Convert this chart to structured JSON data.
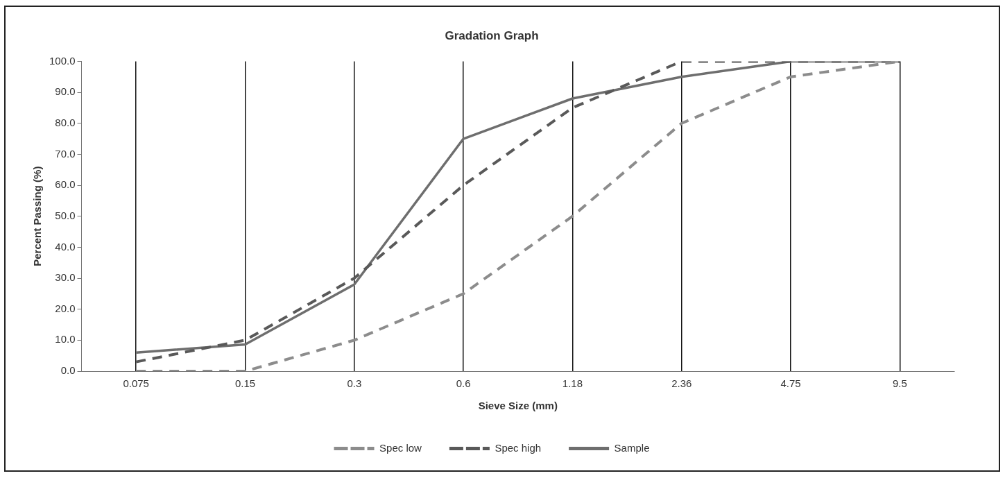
{
  "chart_data": {
    "type": "line",
    "title": "Gradation Graph",
    "xlabel": "Sieve Size (mm)",
    "ylabel": "Percent Passing (%)",
    "categories": [
      "0.075",
      "0.15",
      "0.3",
      "0.6",
      "1.18",
      "2.36",
      "4.75",
      "9.5"
    ],
    "series": [
      {
        "name": "Spec low",
        "color": "#8c8c8c",
        "line_style": "dashed",
        "values": [
          0,
          0,
          10,
          25,
          50,
          80,
          95,
          100
        ]
      },
      {
        "name": "Spec high",
        "color": "#595959",
        "line_style": "dashed",
        "values": [
          3,
          10,
          30,
          60,
          85,
          100,
          100,
          100
        ]
      },
      {
        "name": "Sample",
        "color": "#6e6e6e",
        "line_style": "solid",
        "values": [
          6,
          8.6,
          28,
          75,
          88,
          95,
          100,
          100
        ]
      }
    ],
    "ylim": [
      0,
      100
    ],
    "yticks": [
      {
        "value": 0,
        "label": "0.0"
      },
      {
        "value": 10,
        "label": "10.0"
      },
      {
        "value": 20,
        "label": "20.0"
      },
      {
        "value": 30,
        "label": "30.0"
      },
      {
        "value": 40,
        "label": "40.0"
      },
      {
        "value": 50,
        "label": "50.0"
      },
      {
        "value": 60,
        "label": "60.0"
      },
      {
        "value": 70,
        "label": "70.0"
      },
      {
        "value": 80,
        "label": "80.0"
      },
      {
        "value": 90,
        "label": "90.0"
      },
      {
        "value": 100,
        "label": "100.0"
      }
    ],
    "grid": "x",
    "legend": "bottom",
    "marker": "none"
  }
}
